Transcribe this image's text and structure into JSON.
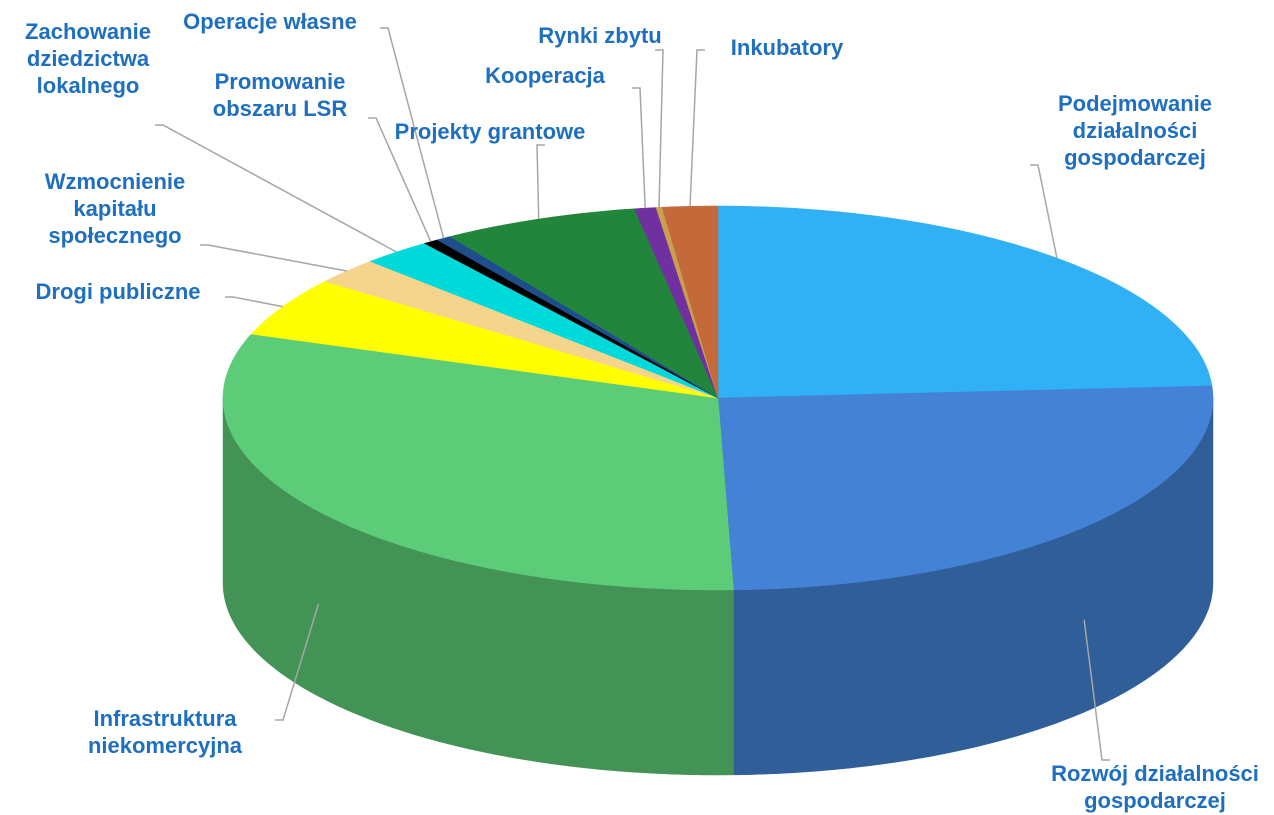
{
  "chart_data": {
    "type": "pie",
    "three_d": true,
    "categories": [
      "Podejmowanie działalności gospodarczej",
      "Rozwój działalności gospodarczej",
      "Infrastruktura niekomercyjna",
      "Drogi publiczne",
      "Wzmocnienie kapitału społecznego",
      "Zachowanie dziedzictwa lokalnego",
      "Promowanie obszaru LSR",
      "Operacje własne",
      "Projekty grantowe",
      "Kooperacja",
      "Rynki zbytu",
      "Inkubatory"
    ],
    "values": [
      24,
      25.5,
      30.9,
      5,
      2.2,
      2.3,
      0.5,
      0.5,
      6.4,
      0.7,
      0.2,
      1.8
    ],
    "colors": [
      "#31b1f5",
      "#4382d4",
      "#5dcc78",
      "#ffff00",
      "#f5d58e",
      "#00dada",
      "#000000",
      "#1f4e8c",
      "#21863c",
      "#7030a0",
      "#c9a050",
      "#c46a3a"
    ],
    "label_color": "#1f6fc0"
  }
}
